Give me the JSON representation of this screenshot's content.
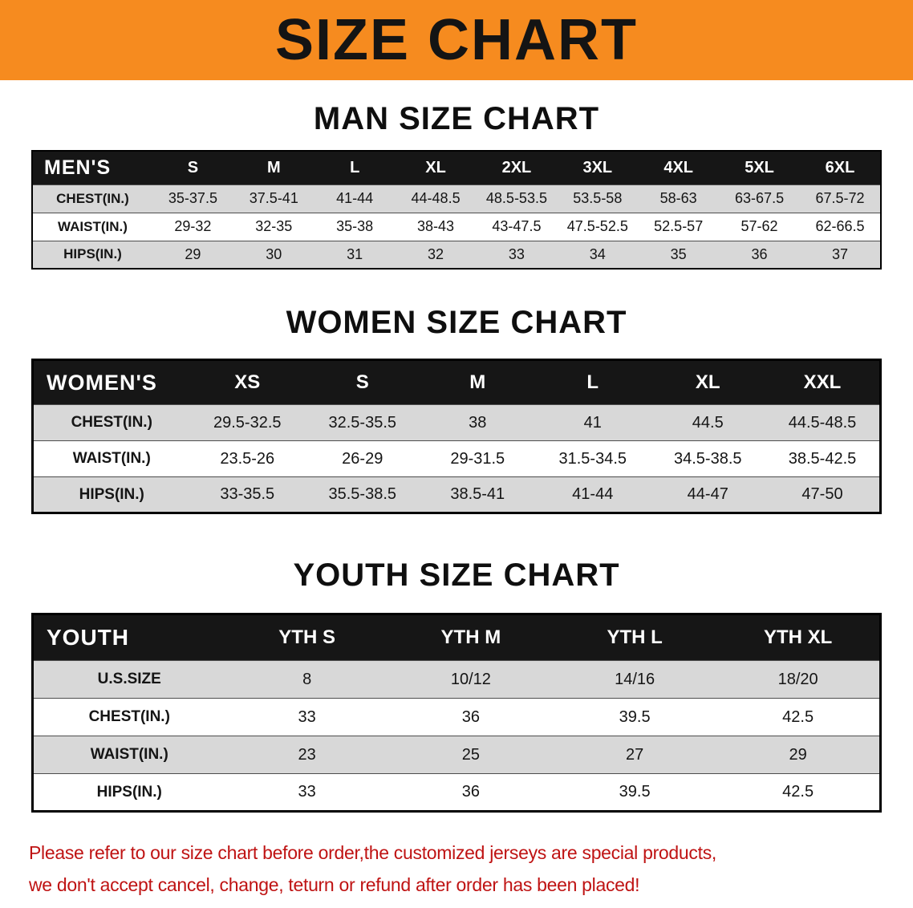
{
  "banner": {
    "title": "SIZE CHART"
  },
  "colors": {
    "banner_bg": "#f68b1f",
    "header_bg": "#161616",
    "stripe_bg": "#d8d8d8",
    "disclaimer_text": "#bf1313"
  },
  "tables": [
    {
      "heading": "MAN SIZE CHART",
      "header": [
        "MEN'S",
        "S",
        "M",
        "L",
        "XL",
        "2XL",
        "3XL",
        "4XL",
        "5XL",
        "6XL"
      ],
      "rows": [
        [
          "CHEST(IN.)",
          "35-37.5",
          "37.5-41",
          "41-44",
          "44-48.5",
          "48.5-53.5",
          "53.5-58",
          "58-63",
          "63-67.5",
          "67.5-72"
        ],
        [
          "WAIST(IN.)",
          "29-32",
          "32-35",
          "35-38",
          "38-43",
          "43-47.5",
          "47.5-52.5",
          "52.5-57",
          "57-62",
          "62-66.5"
        ],
        [
          "HIPS(IN.)",
          "29",
          "30",
          "31",
          "32",
          "33",
          "34",
          "35",
          "36",
          "37"
        ]
      ]
    },
    {
      "heading": "WOMEN SIZE CHART",
      "header": [
        "WOMEN'S",
        "XS",
        "S",
        "M",
        "L",
        "XL",
        "XXL"
      ],
      "rows": [
        [
          "CHEST(IN.)",
          "29.5-32.5",
          "32.5-35.5",
          "38",
          "41",
          "44.5",
          "44.5-48.5"
        ],
        [
          "WAIST(IN.)",
          "23.5-26",
          "26-29",
          "29-31.5",
          "31.5-34.5",
          "34.5-38.5",
          "38.5-42.5"
        ],
        [
          "HIPS(IN.)",
          "33-35.5",
          "35.5-38.5",
          "38.5-41",
          "41-44",
          "44-47",
          "47-50"
        ]
      ]
    },
    {
      "heading": "YOUTH SIZE CHART",
      "header": [
        "YOUTH",
        "YTH S",
        "YTH M",
        "YTH L",
        "YTH XL"
      ],
      "rows": [
        [
          "U.S.SIZE",
          "8",
          "10/12",
          "14/16",
          "18/20"
        ],
        [
          "CHEST(IN.)",
          "33",
          "36",
          "39.5",
          "42.5"
        ],
        [
          "WAIST(IN.)",
          "23",
          "25",
          "27",
          "29"
        ],
        [
          "HIPS(IN.)",
          "33",
          "36",
          "39.5",
          "42.5"
        ]
      ]
    }
  ],
  "disclaimer": {
    "line1": "Please refer to our size chart before order,the customized jerseys are special products,",
    "line2": "we don't accept cancel, change, teturn or refund after order has been placed!"
  }
}
